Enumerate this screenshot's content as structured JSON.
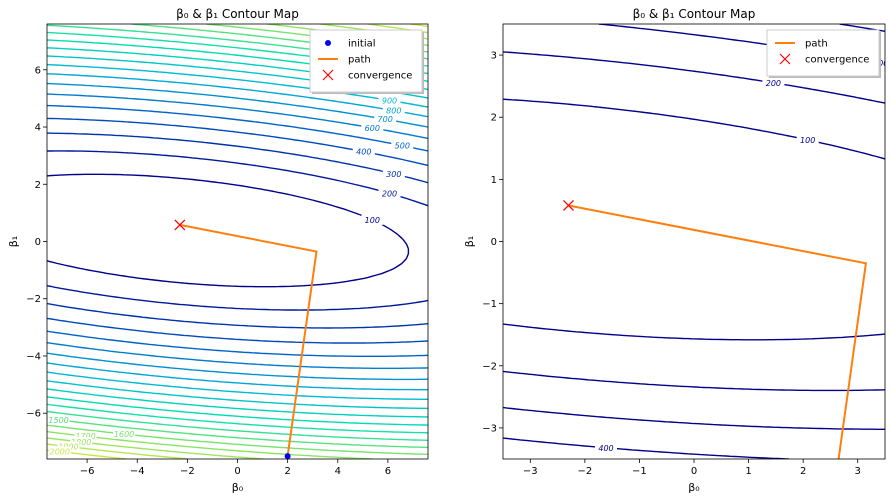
{
  "chart_data": [
    {
      "type": "contour",
      "title": "β₀ & β₁ Contour Map",
      "xlabel": "β₀",
      "ylabel": "β₁",
      "xlim": [
        -7.6,
        7.6
      ],
      "ylim": [
        -7.6,
        7.6
      ],
      "xticks": [
        -6,
        -4,
        -2,
        0,
        2,
        4,
        6
      ],
      "yticks": [
        -6,
        -4,
        -2,
        0,
        2,
        4,
        6
      ],
      "tick_labels_x": [
        "−6",
        "−4",
        "−2",
        "0",
        "2",
        "4",
        "6"
      ],
      "tick_labels_y": [
        "−6",
        "−4",
        "−2",
        "0",
        "2",
        "4",
        "6"
      ],
      "contour_levels": [
        100,
        200,
        300,
        400,
        500,
        600,
        700,
        800,
        900,
        1000,
        1100,
        1200,
        1300,
        1400,
        1500,
        1600,
        1700,
        1800,
        1900,
        2000
      ],
      "colormap": [
        "#00008b",
        "#0060c8",
        "#00b4d8",
        "#00e0b0",
        "#7be36b",
        "#c8e84a"
      ],
      "legend": {
        "location": "upper right",
        "entries": [
          {
            "label": "initial",
            "marker": "dot",
            "color": "#0000ff"
          },
          {
            "label": "path",
            "marker": "line",
            "color": "#ff7f0e"
          },
          {
            "label": "convergence",
            "marker": "x",
            "color": "#ff0000"
          }
        ]
      },
      "path": {
        "x": [
          2.0,
          3.15,
          -2.3
        ],
        "y": [
          -7.5,
          -0.35,
          0.58
        ]
      },
      "initial": {
        "x": 2.0,
        "y": -7.5
      },
      "convergence": {
        "x": -2.3,
        "y": 0.58
      },
      "grid": false
    },
    {
      "type": "contour",
      "title": "β₀ & β₁ Contour Map",
      "xlabel": "β₀",
      "ylabel": "β₁",
      "xlim": [
        -3.5,
        3.5
      ],
      "ylim": [
        -3.5,
        3.5
      ],
      "xticks": [
        -3,
        -2,
        -1,
        0,
        1,
        2,
        3
      ],
      "yticks": [
        -3,
        -2,
        -1,
        0,
        1,
        2,
        3
      ],
      "tick_labels_x": [
        "−3",
        "−2",
        "−1",
        "0",
        "1",
        "2",
        "3"
      ],
      "tick_labels_y": [
        "−3",
        "−2",
        "−1",
        "0",
        "1",
        "2",
        "3"
      ],
      "contour_levels": [
        100,
        200,
        300,
        400,
        500
      ],
      "legend": {
        "location": "upper right",
        "entries": [
          {
            "label": "path",
            "marker": "line",
            "color": "#ff7f0e"
          },
          {
            "label": "convergence",
            "marker": "x",
            "color": "#ff0000"
          }
        ]
      },
      "path": {
        "x": [
          2.65,
          3.15,
          -2.3
        ],
        "y": [
          -3.5,
          -0.35,
          0.58
        ]
      },
      "convergence": {
        "x": -2.3,
        "y": 0.58
      },
      "grid": false
    }
  ]
}
